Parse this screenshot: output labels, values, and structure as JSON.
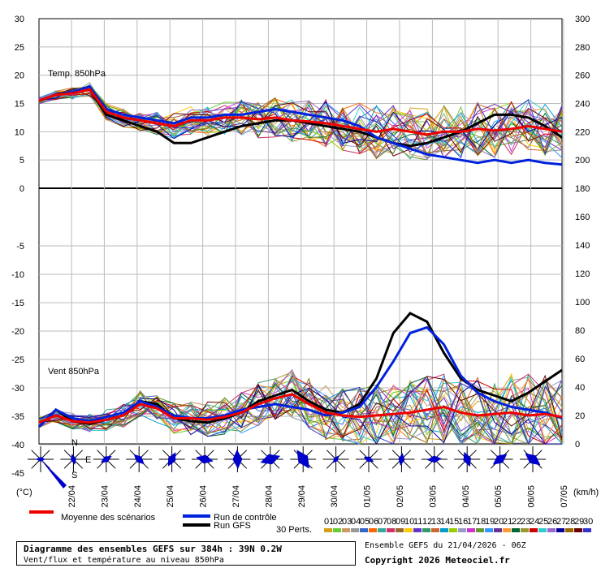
{
  "chart_data": {
    "type": "line",
    "x_dates": [
      "22/04",
      "23/04",
      "24/04",
      "25/04",
      "26/04",
      "27/04",
      "28/04",
      "29/04",
      "30/04",
      "01/05",
      "02/05",
      "03/05",
      "04/05",
      "05/05",
      "06/05",
      "07/05"
    ],
    "temp_panel": {
      "label": "Temp. 850hPa",
      "left_ticks": [
        "30",
        "25",
        "20",
        "15",
        "10",
        "5",
        "0"
      ],
      "right_ticks": [
        "300",
        "280",
        "260",
        "240",
        "220",
        "200",
        "180"
      ],
      "ylim": [
        0,
        30
      ],
      "mean": [
        15.5,
        16.5,
        16.8,
        17.5,
        13.5,
        12.5,
        12,
        11.5,
        11,
        12,
        12,
        12.5,
        12.5,
        12.2,
        12.5,
        12,
        11.8,
        11.5,
        11,
        10.5,
        10,
        10.5,
        10,
        9.5,
        10,
        10,
        10.5,
        10.2,
        10.5,
        11,
        10.5,
        10
      ],
      "control": [
        15.5,
        16.5,
        17,
        18,
        14,
        13,
        12.5,
        12,
        11.5,
        12.5,
        12.5,
        13,
        13,
        13.5,
        14,
        13.5,
        13,
        12.5,
        12,
        11,
        9,
        8,
        7,
        6,
        5.5,
        5,
        4.5,
        5,
        4.5,
        5,
        4.5,
        4.2
      ],
      "gfs": [
        15.5,
        16.5,
        17,
        17.5,
        13,
        12,
        11,
        10,
        8,
        8,
        9,
        10,
        11,
        11.5,
        12,
        12,
        11.5,
        11,
        10.5,
        10,
        9,
        8,
        7.5,
        8,
        9,
        10,
        11.5,
        13,
        13,
        12.5,
        11,
        9
      ]
    },
    "wind_panel": {
      "label": "Vent 850hPa",
      "left_ticks": [
        "0",
        "-5",
        "-10",
        "-15",
        "-20",
        "-25",
        "-30",
        "-35",
        "-40",
        "-45"
      ],
      "right_ticks": [
        "180",
        "160",
        "140",
        "120",
        "100",
        "80",
        "60",
        "40",
        "20",
        "0"
      ],
      "ylim": [
        0,
        180
      ],
      "unit_left": "(°C)",
      "unit_right": "(km/h)",
      "mean": [
        15,
        20,
        16,
        15,
        17,
        20,
        28,
        25,
        18,
        18,
        17,
        19,
        22,
        28,
        32,
        35,
        28,
        22,
        20,
        19,
        20,
        21,
        22,
        24,
        26,
        22,
        20,
        21,
        22,
        20,
        21,
        19
      ],
      "control": [
        12,
        24,
        18,
        16,
        19,
        22,
        30,
        26,
        20,
        18,
        18,
        20,
        24,
        26,
        28,
        26,
        24,
        20,
        22,
        26,
        40,
        58,
        78,
        82,
        70,
        48,
        36,
        30,
        26,
        24,
        22,
        18
      ],
      "gfs": [
        12,
        24,
        16,
        14,
        17,
        20,
        30,
        28,
        18,
        16,
        15,
        18,
        22,
        30,
        34,
        38,
        30,
        24,
        22,
        28,
        46,
        78,
        92,
        86,
        64,
        46,
        38,
        34,
        30,
        36,
        44,
        52
      ]
    },
    "legend": {
      "mean": "Moyenne des scénarios",
      "control": "Run de contrôle",
      "gfs": "Run GFS",
      "perts": "30 Perts.",
      "members": [
        "01",
        "02",
        "03",
        "04",
        "05",
        "06",
        "07",
        "08",
        "09",
        "10",
        "11",
        "12",
        "13",
        "14",
        "15",
        "16",
        "17",
        "18",
        "19",
        "20",
        "21",
        "22",
        "23",
        "24",
        "25",
        "26",
        "27",
        "28",
        "29",
        "30"
      ],
      "colors": [
        "#d4a017",
        "#66cc33",
        "#cc9966",
        "#999999",
        "#3366cc",
        "#ff6600",
        "#33aa99",
        "#cc3366",
        "#996633",
        "#ffcc00",
        "#6633cc",
        "#339966",
        "#cc6633",
        "#0099cc",
        "#99cc00",
        "#9999cc",
        "#cc33cc",
        "#669933",
        "#3399ff",
        "#663399",
        "#ff9933",
        "#006633",
        "#999933",
        "#cc0000",
        "#33cccc",
        "#9966cc",
        "#000099",
        "#996600",
        "#660000",
        "#3333cc"
      ]
    },
    "compass": {
      "n": "N",
      "e": "E",
      "s": "S"
    }
  },
  "footer": {
    "title": "Diagramme des ensembles GEFS sur 384h : 39N 0.2W",
    "subtitle": "Vent/flux et température au niveau 850hPa",
    "ensemble": "Ensemble GEFS du 21/04/2026 - 06Z",
    "copyright": "Copyright 2026 Meteociel.fr"
  }
}
